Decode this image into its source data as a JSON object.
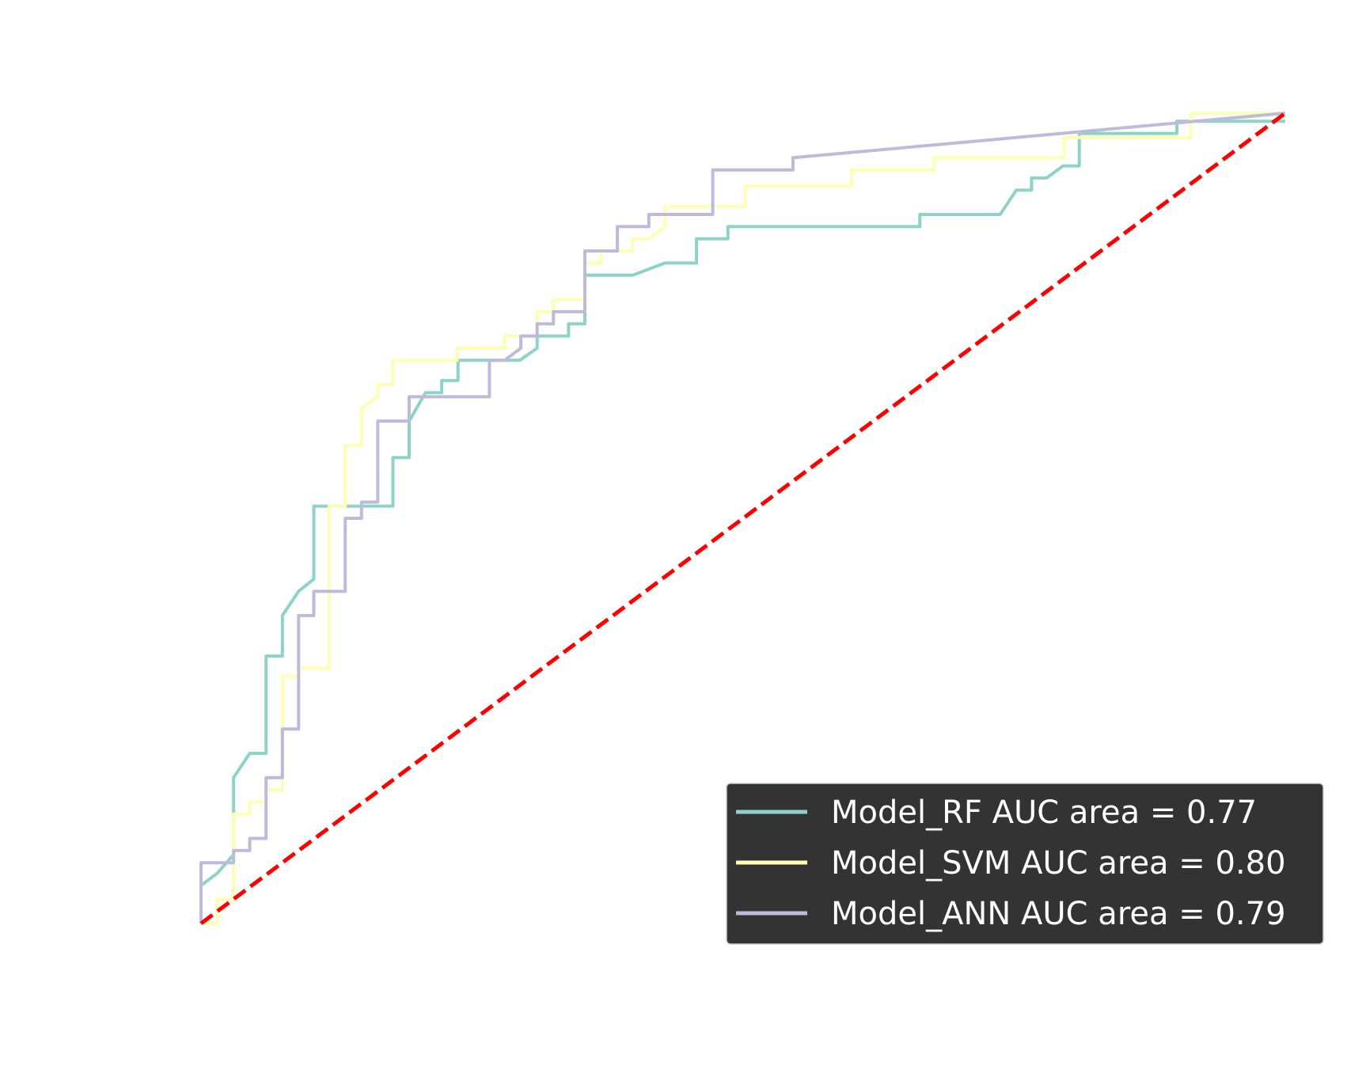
{
  "chart_data": {
    "type": "line",
    "title": "",
    "xlabel": "",
    "ylabel": "",
    "xlim": [
      0,
      1
    ],
    "ylim": [
      0,
      1
    ],
    "grid": false,
    "legend_position": "lower-right",
    "legend_background": "#333333",
    "series": [
      {
        "name": "Model_RF AUC area = 0.77",
        "color": "#8dd3c7",
        "points": [
          [
            0,
            0.047
          ],
          [
            0.015,
            0.062
          ],
          [
            0.03,
            0.085
          ],
          [
            0.03,
            0.18
          ],
          [
            0.045,
            0.21
          ],
          [
            0.06,
            0.21
          ],
          [
            0.06,
            0.33
          ],
          [
            0.075,
            0.33
          ],
          [
            0.075,
            0.38
          ],
          [
            0.09,
            0.41
          ],
          [
            0.104,
            0.425
          ],
          [
            0.104,
            0.515
          ],
          [
            0.177,
            0.515
          ],
          [
            0.177,
            0.575
          ],
          [
            0.192,
            0.575
          ],
          [
            0.192,
            0.62
          ],
          [
            0.207,
            0.655
          ],
          [
            0.222,
            0.655
          ],
          [
            0.222,
            0.67
          ],
          [
            0.237,
            0.67
          ],
          [
            0.237,
            0.695
          ],
          [
            0.294,
            0.695
          ],
          [
            0.31,
            0.71
          ],
          [
            0.31,
            0.725
          ],
          [
            0.339,
            0.725
          ],
          [
            0.339,
            0.74
          ],
          [
            0.354,
            0.74
          ],
          [
            0.354,
            0.8
          ],
          [
            0.398,
            0.8
          ],
          [
            0.428,
            0.815
          ],
          [
            0.457,
            0.815
          ],
          [
            0.457,
            0.845
          ],
          [
            0.486,
            0.845
          ],
          [
            0.486,
            0.86
          ],
          [
            0.663,
            0.86
          ],
          [
            0.663,
            0.875
          ],
          [
            0.737,
            0.875
          ],
          [
            0.752,
            0.905
          ],
          [
            0.766,
            0.905
          ],
          [
            0.766,
            0.92
          ],
          [
            0.78,
            0.92
          ],
          [
            0.795,
            0.935
          ],
          [
            0.81,
            0.935
          ],
          [
            0.81,
            0.975
          ],
          [
            0.9,
            0.975
          ],
          [
            0.9,
            0.99
          ],
          [
            1,
            0.99
          ]
        ]
      },
      {
        "name": "Model_SVM AUC area = 0.80",
        "color": "#ffffb3",
        "points": [
          [
            0,
            0
          ],
          [
            0.015,
            0
          ],
          [
            0.015,
            0.03
          ],
          [
            0.03,
            0.03
          ],
          [
            0.03,
            0.135
          ],
          [
            0.045,
            0.135
          ],
          [
            0.045,
            0.15
          ],
          [
            0.06,
            0.15
          ],
          [
            0.06,
            0.165
          ],
          [
            0.075,
            0.165
          ],
          [
            0.075,
            0.305
          ],
          [
            0.09,
            0.305
          ],
          [
            0.09,
            0.315
          ],
          [
            0.118,
            0.315
          ],
          [
            0.118,
            0.515
          ],
          [
            0.133,
            0.515
          ],
          [
            0.133,
            0.59
          ],
          [
            0.148,
            0.59
          ],
          [
            0.148,
            0.635
          ],
          [
            0.163,
            0.65
          ],
          [
            0.163,
            0.665
          ],
          [
            0.177,
            0.665
          ],
          [
            0.177,
            0.695
          ],
          [
            0.236,
            0.695
          ],
          [
            0.236,
            0.71
          ],
          [
            0.28,
            0.71
          ],
          [
            0.28,
            0.725
          ],
          [
            0.31,
            0.725
          ],
          [
            0.31,
            0.755
          ],
          [
            0.325,
            0.755
          ],
          [
            0.325,
            0.77
          ],
          [
            0.354,
            0.77
          ],
          [
            0.354,
            0.815
          ],
          [
            0.369,
            0.815
          ],
          [
            0.369,
            0.83
          ],
          [
            0.398,
            0.83
          ],
          [
            0.398,
            0.845
          ],
          [
            0.413,
            0.845
          ],
          [
            0.428,
            0.86
          ],
          [
            0.428,
            0.885
          ],
          [
            0.502,
            0.885
          ],
          [
            0.502,
            0.91
          ],
          [
            0.6,
            0.91
          ],
          [
            0.6,
            0.93
          ],
          [
            0.676,
            0.93
          ],
          [
            0.676,
            0.945
          ],
          [
            0.796,
            0.945
          ],
          [
            0.796,
            0.97
          ],
          [
            0.913,
            0.97
          ],
          [
            0.913,
            1
          ],
          [
            1,
            1
          ]
        ]
      },
      {
        "name": "Model_ANN AUC area = 0.79",
        "color": "#bebada",
        "points": [
          [
            0,
            0
          ],
          [
            0,
            0.075
          ],
          [
            0.03,
            0.075
          ],
          [
            0.03,
            0.09
          ],
          [
            0.045,
            0.09
          ],
          [
            0.045,
            0.105
          ],
          [
            0.06,
            0.105
          ],
          [
            0.06,
            0.18
          ],
          [
            0.075,
            0.18
          ],
          [
            0.075,
            0.24
          ],
          [
            0.09,
            0.24
          ],
          [
            0.09,
            0.38
          ],
          [
            0.104,
            0.38
          ],
          [
            0.104,
            0.41
          ],
          [
            0.133,
            0.41
          ],
          [
            0.133,
            0.5
          ],
          [
            0.148,
            0.5
          ],
          [
            0.148,
            0.52
          ],
          [
            0.163,
            0.52
          ],
          [
            0.163,
            0.62
          ],
          [
            0.192,
            0.62
          ],
          [
            0.192,
            0.65
          ],
          [
            0.266,
            0.65
          ],
          [
            0.266,
            0.695
          ],
          [
            0.28,
            0.695
          ],
          [
            0.295,
            0.71
          ],
          [
            0.295,
            0.725
          ],
          [
            0.31,
            0.725
          ],
          [
            0.31,
            0.74
          ],
          [
            0.325,
            0.74
          ],
          [
            0.325,
            0.755
          ],
          [
            0.354,
            0.755
          ],
          [
            0.354,
            0.83
          ],
          [
            0.384,
            0.83
          ],
          [
            0.384,
            0.86
          ],
          [
            0.413,
            0.86
          ],
          [
            0.413,
            0.875
          ],
          [
            0.472,
            0.875
          ],
          [
            0.472,
            0.93
          ],
          [
            0.546,
            0.93
          ],
          [
            0.546,
            0.945
          ],
          [
            1,
            1
          ]
        ]
      },
      {
        "name": "",
        "color": "#ff0000",
        "style": "dashed",
        "points": [
          [
            0,
            0
          ],
          [
            1,
            1
          ]
        ]
      }
    ]
  }
}
